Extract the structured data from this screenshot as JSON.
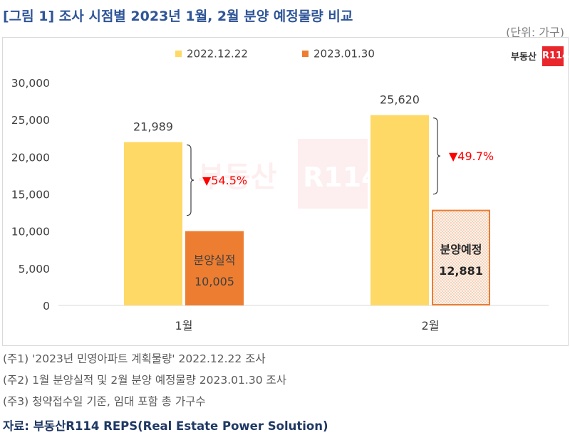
{
  "title": "[그림 1] 조사 시점별 2023년 1월, 2월 분양 예정물량 비교",
  "unit": "(단위: 가구)",
  "logo": {
    "text": "부동산",
    "badge": "R114"
  },
  "colors": {
    "series1": "#ffd966",
    "series2": "#ed7d31",
    "decrease": "#ff0000",
    "title": "#2f5597"
  },
  "chart_data": {
    "type": "bar",
    "categories": [
      "1월",
      "2월"
    ],
    "series": [
      {
        "name": "2022.12.22",
        "values": [
          21989,
          25620
        ],
        "labels": [
          "21,989",
          "25,620"
        ]
      },
      {
        "name": "2023.01.30",
        "values": [
          10005,
          12881
        ],
        "labels": [
          "10,005",
          "12,881"
        ],
        "inner_labels": [
          "분양실적",
          "분양예정"
        ]
      }
    ],
    "changes": [
      "▼54.5%",
      "▼49.7%"
    ],
    "ylim": [
      0,
      30000
    ],
    "yticks": [
      "0",
      "5,000",
      "10,000",
      "15,000",
      "20,000",
      "25,000",
      "30,000"
    ],
    "legend": "top",
    "grid": false
  },
  "notes": [
    "(주1) '2023년 민영아파트 계획물량' 2022.12.22 조사",
    "(주2) 1월 분양실적 및 2월 분양 예정물량 2023.01.30 조사",
    "(주3) 청약접수일 기준, 임대 포함 총 가구수"
  ],
  "source": "자료: 부동산R114 REPS(Real Estate Power Solution)"
}
